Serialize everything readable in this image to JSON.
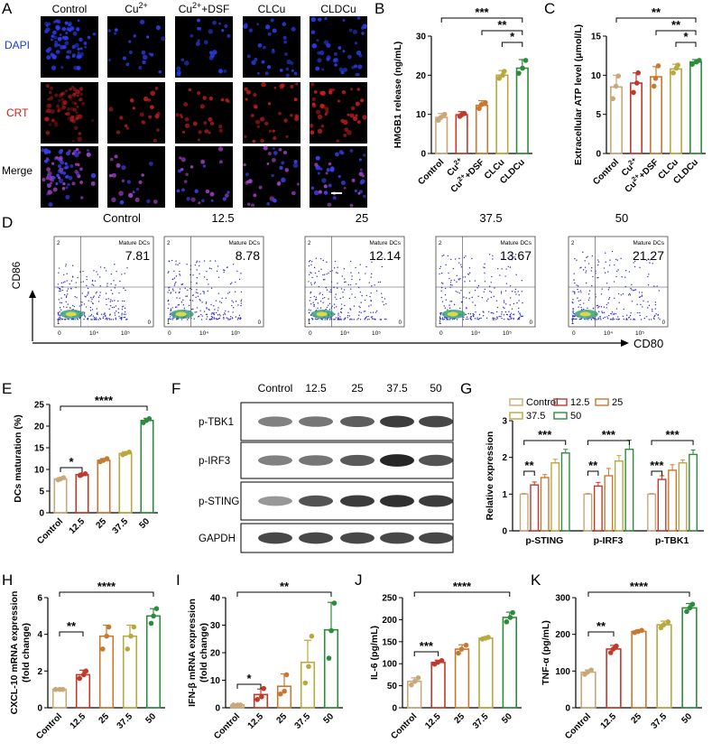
{
  "colors": {
    "control": "#c8a878",
    "c1": "#c0392b",
    "c2": "#c87830",
    "c3": "#b8a840",
    "c4": "#2e8b3c",
    "mic_blue": "#1e3cc8",
    "mic_red": "#c81e1e",
    "axis": "#000000"
  },
  "panel_letters": {
    "a": "A",
    "b": "B",
    "c": "C",
    "d": "D",
    "e": "E",
    "f": "F",
    "g": "G",
    "h": "H",
    "i": "I",
    "j": "J",
    "k": "K"
  },
  "panelA": {
    "columns": [
      "Control",
      "Cu2+",
      "Cu2++DSF",
      "CLCu",
      "CLDCu"
    ],
    "column_display": [
      {
        "base": "Control",
        "sup": ""
      },
      {
        "base": "Cu",
        "sup": "2+"
      },
      {
        "base": "Cu",
        "sup": "2+",
        "tail": "+DSF"
      },
      {
        "base": "CLCu",
        "sup": ""
      },
      {
        "base": "CLDCu",
        "sup": ""
      }
    ],
    "rows": [
      "DAPI",
      "CRT",
      "Merge"
    ],
    "density": [
      0.4,
      0.22,
      0.28,
      0.34,
      0.46
    ]
  },
  "panelD": {
    "titles": [
      "Control",
      "12.5",
      "25",
      "37.5",
      "50"
    ],
    "gate_label": "Mature DCs",
    "values": [
      "7.81",
      "8.78",
      "12.14",
      "13.67",
      "21.27"
    ],
    "quadrant_labels": [
      "2",
      "1",
      "0"
    ],
    "ticks": [
      "0",
      "10⁴",
      "10⁵"
    ],
    "xlabel": "CD80",
    "ylabel": "CD86"
  },
  "panelF": {
    "columns": [
      "Control",
      "12.5",
      "25",
      "37.5",
      "50"
    ],
    "rows": [
      "p-TBK1",
      "p-IRF3",
      "p-STING",
      "GAPDH"
    ],
    "intensity": [
      [
        0.55,
        0.6,
        0.7,
        0.85,
        0.8
      ],
      [
        0.55,
        0.6,
        0.72,
        0.95,
        0.75
      ],
      [
        0.45,
        0.75,
        0.85,
        0.9,
        0.85
      ],
      [
        0.8,
        0.8,
        0.8,
        0.8,
        0.8
      ]
    ]
  },
  "chart_data": [
    {
      "id": "B",
      "type": "bar",
      "ylabel": "HMGB1 release (ng/mL)",
      "ylim": [
        0,
        30
      ],
      "yticks": [
        0,
        10,
        20,
        30
      ],
      "categories": [
        "Control",
        "Cu2+",
        "Cu2++DSF",
        "CLCu",
        "CLDCu"
      ],
      "category_display": [
        {
          "base": "Control",
          "sup": ""
        },
        {
          "base": "Cu",
          "sup": "2+"
        },
        {
          "base": "Cu",
          "sup": "2+",
          "tail": "+DSF"
        },
        {
          "base": "CLCu",
          "sup": ""
        },
        {
          "base": "CLDCu",
          "sup": ""
        }
      ],
      "values": [
        9.2,
        9.9,
        12.3,
        20.0,
        21.8
      ],
      "errors": [
        1.0,
        0.8,
        1.2,
        1.2,
        2.2
      ],
      "points": [
        [
          8.5,
          9.2,
          10.0
        ],
        [
          9.5,
          9.9,
          10.2
        ],
        [
          11.5,
          12.5,
          13.0
        ],
        [
          19.2,
          20.0,
          21.0
        ],
        [
          20.5,
          21.8,
          23.8
        ]
      ],
      "colors": [
        "#c8a878",
        "#c0392b",
        "#c87830",
        "#b8a840",
        "#2e8b3c"
      ],
      "sig": [
        {
          "from": 0,
          "to": 4,
          "label": "***"
        },
        {
          "from": 2,
          "to": 4,
          "label": "**"
        },
        {
          "from": 3,
          "to": 4,
          "label": "*"
        }
      ]
    },
    {
      "id": "C",
      "type": "bar",
      "ylabel": "Extracellular ATP level (μmol/L)",
      "ylim": [
        0,
        15
      ],
      "yticks": [
        0,
        5,
        10,
        15
      ],
      "categories": [
        "Control",
        "Cu2+",
        "Cu2++DSF",
        "CLCu",
        "CLDCu"
      ],
      "category_display": [
        {
          "base": "Control",
          "sup": ""
        },
        {
          "base": "Cu",
          "sup": "2+"
        },
        {
          "base": "Cu",
          "sup": "2+",
          "tail": "+DSF"
        },
        {
          "base": "CLCu",
          "sup": ""
        },
        {
          "base": "CLDCu",
          "sup": ""
        }
      ],
      "values": [
        8.5,
        9.0,
        9.8,
        10.8,
        11.7
      ],
      "errors": [
        1.5,
        1.3,
        1.3,
        0.6,
        0.3
      ],
      "points": [
        [
          7.0,
          8.6,
          9.9
        ],
        [
          7.8,
          9.0,
          10.3
        ],
        [
          8.6,
          9.6,
          11.2
        ],
        [
          10.3,
          10.9,
          11.3
        ],
        [
          11.4,
          11.7,
          11.9
        ]
      ],
      "colors": [
        "#c8a878",
        "#c0392b",
        "#c87830",
        "#b8a840",
        "#2e8b3c"
      ],
      "sig": [
        {
          "from": 0,
          "to": 4,
          "label": "**"
        },
        {
          "from": 2,
          "to": 4,
          "label": "**"
        },
        {
          "from": 3,
          "to": 4,
          "label": "*"
        }
      ]
    },
    {
      "id": "E",
      "type": "bar",
      "ylabel": "DCs maturation (%)",
      "ylim": [
        0,
        25
      ],
      "yticks": [
        0,
        5,
        10,
        15,
        20,
        25
      ],
      "categories": [
        "Control",
        "12.5",
        "25",
        "37.5",
        "50"
      ],
      "values": [
        7.8,
        8.8,
        12.1,
        13.7,
        21.3
      ],
      "errors": [
        0.3,
        0.3,
        0.4,
        0.4,
        0.5
      ],
      "points": [
        [
          7.6,
          7.8,
          8.1
        ],
        [
          8.6,
          8.8,
          9.0
        ],
        [
          11.8,
          12.1,
          12.5
        ],
        [
          13.4,
          13.7,
          14.0
        ],
        [
          20.8,
          21.3,
          21.7
        ]
      ],
      "colors": [
        "#c8a878",
        "#c0392b",
        "#c87830",
        "#b8a840",
        "#2e8b3c"
      ],
      "sig": [
        {
          "from": 0,
          "to": 4,
          "label": "****"
        },
        {
          "from": 0,
          "to": 1,
          "label": "*"
        }
      ]
    },
    {
      "id": "G",
      "type": "grouped_bar",
      "ylabel": "Relative expression",
      "ylim": [
        0,
        3
      ],
      "yticks": [
        0,
        1,
        2,
        3
      ],
      "groups": [
        "p-STING",
        "p-IRF3",
        "p-TBK1"
      ],
      "series": [
        {
          "name": "Control",
          "color": "#c8a878",
          "values": [
            1.0,
            1.0,
            1.0
          ],
          "errors": [
            0.02,
            0.02,
            0.02
          ]
        },
        {
          "name": "12.5",
          "color": "#c0392b",
          "values": [
            1.25,
            1.22,
            1.4
          ],
          "errors": [
            0.08,
            0.1,
            0.1
          ]
        },
        {
          "name": "25",
          "color": "#c87830",
          "values": [
            1.45,
            1.5,
            1.65
          ],
          "errors": [
            0.08,
            0.2,
            0.15
          ]
        },
        {
          "name": "37.5",
          "color": "#b8a840",
          "values": [
            1.85,
            1.9,
            1.85
          ],
          "errors": [
            0.1,
            0.15,
            0.08
          ]
        },
        {
          "name": "50",
          "color": "#2e8b3c",
          "values": [
            2.12,
            2.22,
            2.08
          ],
          "errors": [
            0.1,
            0.25,
            0.12
          ]
        }
      ],
      "sig": [
        {
          "group": 0,
          "from": 0,
          "to": 4,
          "label": "***"
        },
        {
          "group": 0,
          "from": 0,
          "to": 1,
          "label": "**"
        },
        {
          "group": 1,
          "from": 0,
          "to": 4,
          "label": "***"
        },
        {
          "group": 1,
          "from": 0,
          "to": 1,
          "label": "**"
        },
        {
          "group": 2,
          "from": 0,
          "to": 4,
          "label": "***"
        },
        {
          "group": 2,
          "from": 0,
          "to": 1,
          "label": "***"
        }
      ]
    },
    {
      "id": "H",
      "type": "bar",
      "ylabel": "CXCL-10 mRNA expression\n(fold change)",
      "ylim": [
        0,
        6
      ],
      "yticks": [
        0,
        2,
        4,
        6
      ],
      "categories": [
        "Control",
        "12.5",
        "25",
        "37.5",
        "50"
      ],
      "values": [
        1.0,
        1.8,
        3.9,
        3.9,
        5.0
      ],
      "errors": [
        0.05,
        0.25,
        0.6,
        0.6,
        0.4
      ],
      "points": [
        [
          1.0,
          1.0,
          1.0
        ],
        [
          1.6,
          1.8,
          2.0
        ],
        [
          3.2,
          3.9,
          4.4
        ],
        [
          3.2,
          3.9,
          4.4
        ],
        [
          4.6,
          5.0,
          5.4
        ]
      ],
      "colors": [
        "#c8a878",
        "#c0392b",
        "#c87830",
        "#b8a840",
        "#2e8b3c"
      ],
      "sig": [
        {
          "from": 0,
          "to": 4,
          "label": "****"
        },
        {
          "from": 0,
          "to": 1,
          "label": "**"
        }
      ]
    },
    {
      "id": "I",
      "type": "bar",
      "ylabel": "IFN-β mRNA expression\n(fold change)",
      "ylim": [
        0,
        40
      ],
      "yticks": [
        0,
        10,
        20,
        30,
        40
      ],
      "categories": [
        "Control",
        "12.5",
        "25",
        "37.5",
        "50"
      ],
      "values": [
        1.0,
        4.8,
        7.8,
        16.5,
        28.3
      ],
      "errors": [
        0.1,
        2.0,
        4.5,
        8.0,
        10.0
      ],
      "points": [
        [
          1.0,
          1.0,
          1.0
        ],
        [
          3.0,
          4.0,
          7.0
        ],
        [
          5.0,
          6.0,
          12.0
        ],
        [
          9.0,
          15.0,
          26.0
        ],
        [
          18.0,
          28.0,
          38.0
        ]
      ],
      "colors": [
        "#c8a878",
        "#c0392b",
        "#c87830",
        "#b8a840",
        "#2e8b3c"
      ],
      "sig": [
        {
          "from": 0,
          "to": 4,
          "label": "**"
        },
        {
          "from": 0,
          "to": 1,
          "label": "*"
        }
      ]
    },
    {
      "id": "J",
      "type": "bar",
      "ylabel": "IL-6 (pg/mL)",
      "ylim": [
        0,
        250
      ],
      "yticks": [
        0,
        50,
        100,
        150,
        200,
        250
      ],
      "categories": [
        "Control",
        "12.5",
        "25",
        "37.5",
        "50"
      ],
      "values": [
        60,
        103,
        133,
        158,
        205
      ],
      "errors": [
        8,
        5,
        10,
        3,
        12
      ],
      "points": [
        [
          52,
          60,
          68
        ],
        [
          99,
          103,
          107
        ],
        [
          124,
          133,
          142
        ],
        [
          156,
          158,
          160
        ],
        [
          195,
          205,
          216
        ]
      ],
      "colors": [
        "#c8a878",
        "#c0392b",
        "#c87830",
        "#b8a840",
        "#2e8b3c"
      ],
      "sig": [
        {
          "from": 0,
          "to": 4,
          "label": "****"
        },
        {
          "from": 0,
          "to": 1,
          "label": "***"
        }
      ]
    },
    {
      "id": "K",
      "type": "bar",
      "ylabel": "TNF-α (pg/mL)",
      "ylim": [
        0,
        300
      ],
      "yticks": [
        0,
        100,
        200,
        300
      ],
      "categories": [
        "Control",
        "12.5",
        "25",
        "37.5",
        "50"
      ],
      "values": [
        97,
        160,
        208,
        226,
        272
      ],
      "errors": [
        6,
        10,
        4,
        10,
        12
      ],
      "points": [
        [
          91,
          97,
          103
        ],
        [
          150,
          160,
          168
        ],
        [
          205,
          208,
          211
        ],
        [
          218,
          226,
          234
        ],
        [
          262,
          272,
          282
        ]
      ],
      "colors": [
        "#c8a878",
        "#c0392b",
        "#c87830",
        "#b8a840",
        "#2e8b3c"
      ],
      "sig": [
        {
          "from": 0,
          "to": 4,
          "label": "****"
        },
        {
          "from": 0,
          "to": 1,
          "label": "**"
        }
      ]
    }
  ]
}
